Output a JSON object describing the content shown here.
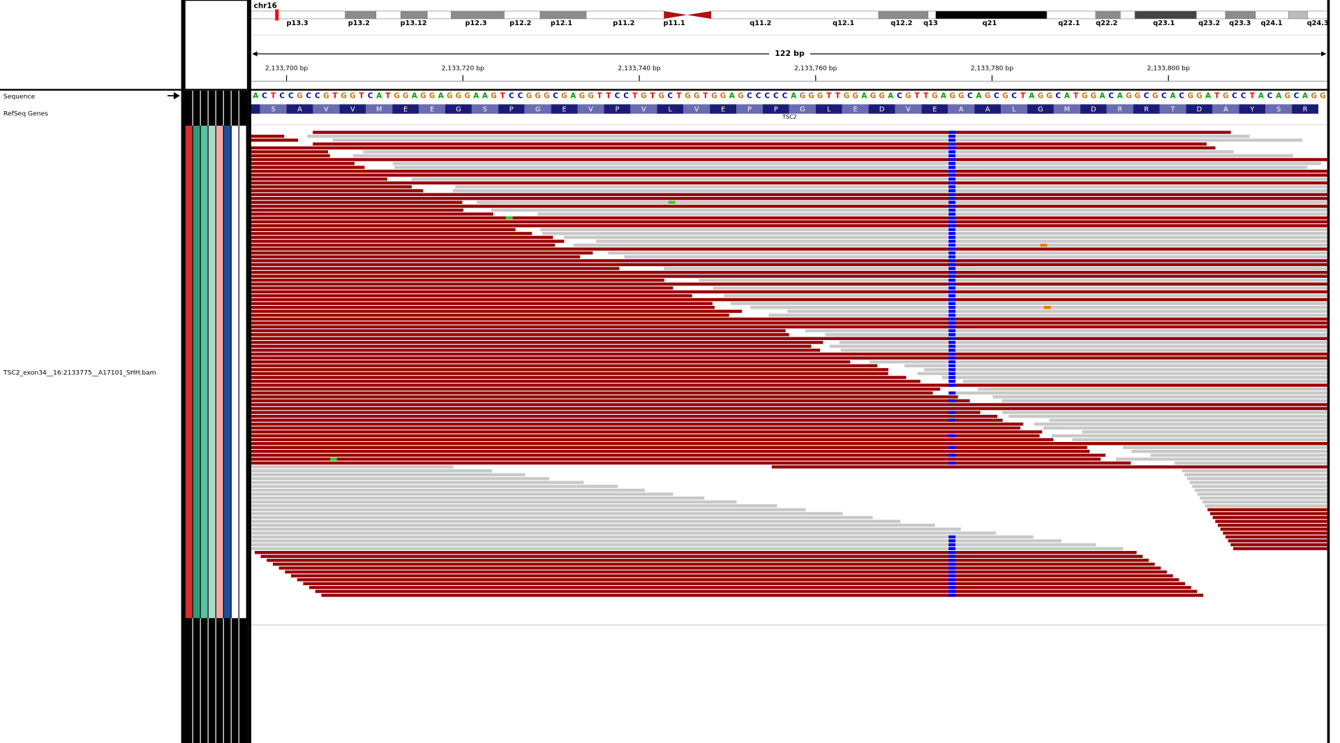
{
  "chromosome": "chr16",
  "ideogram": {
    "bands": [
      "p13.3",
      "p13.2",
      "p13.12",
      "p12.3",
      "p12.2",
      "p12.1",
      "p11.2",
      "p11.1",
      "q11.2",
      "q12.1",
      "q12.2",
      "q13",
      "q21",
      "q22.1",
      "q22.2",
      "q23.1",
      "q23.2",
      "q23.3",
      "q24.1",
      "q24.3"
    ]
  },
  "ruler": {
    "span_label": "122 bp",
    "xlim": [
      2133696,
      2133818
    ],
    "ticks": [
      {
        "value": 2133700,
        "label": "2,133,700 bp"
      },
      {
        "value": 2133720,
        "label": "2,133,720 bp"
      },
      {
        "value": 2133740,
        "label": "2,133,740 bp"
      },
      {
        "value": 2133760,
        "label": "2,133,760 bp"
      },
      {
        "value": 2133780,
        "label": "2,133,780 bp"
      },
      {
        "value": 2133800,
        "label": "2,133,800 bp"
      }
    ]
  },
  "tracks": {
    "sequence": {
      "name": "Sequence",
      "bases": "ACTCCGCCGTGGTCATGGAGGAGGGAAGTCCGGGCGAGGTTCCTGTGCTGGTGGAGCCCCCAGGGTTGGAGGACGTTGAGGCAGCGCTAGGCATGGACAGGCGCACGGATGCCTACAGCAGG"
    },
    "genes": {
      "name": "RefSeq Genes",
      "gene": "TSC2",
      "amino_acids": "SAVVMEEGSPGEVPVLVEPPGLEDVEAALGMDRRTDAYSR"
    },
    "alignment": {
      "name": "TSC2_exon34__16:2133775__A17101_SHH.bam"
    }
  }
}
